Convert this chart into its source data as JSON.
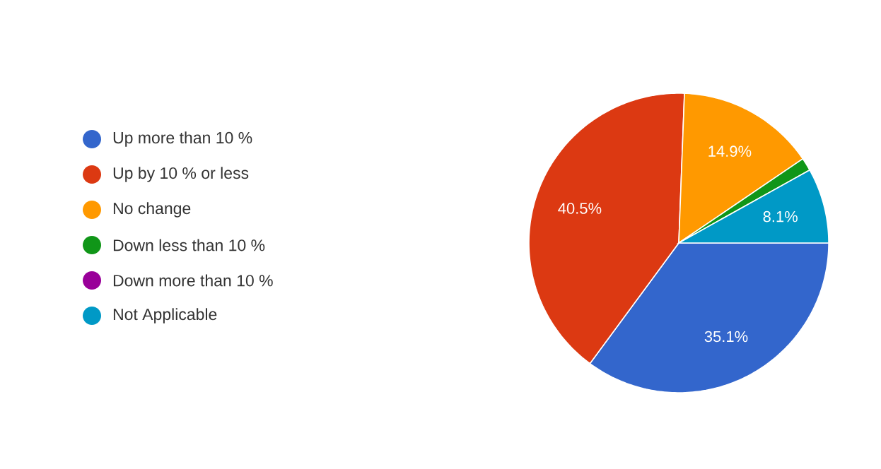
{
  "chart_data": {
    "type": "pie",
    "categories": [
      "Up more than 10 %",
      "Up by 10 % or less",
      "No change",
      "Down less than 10 %",
      "Down more than 10 %",
      "Not Applicable"
    ],
    "values": [
      35.1,
      40.5,
      14.9,
      1.4,
      0,
      8.1
    ],
    "value_labels": [
      "35.1%",
      "40.5%",
      "14.9%",
      null,
      null,
      "8.1%"
    ],
    "colors": [
      "#3366cc",
      "#dc3912",
      "#ff9900",
      "#109618",
      "#990099",
      "#0099c6"
    ],
    "legend": "left"
  }
}
